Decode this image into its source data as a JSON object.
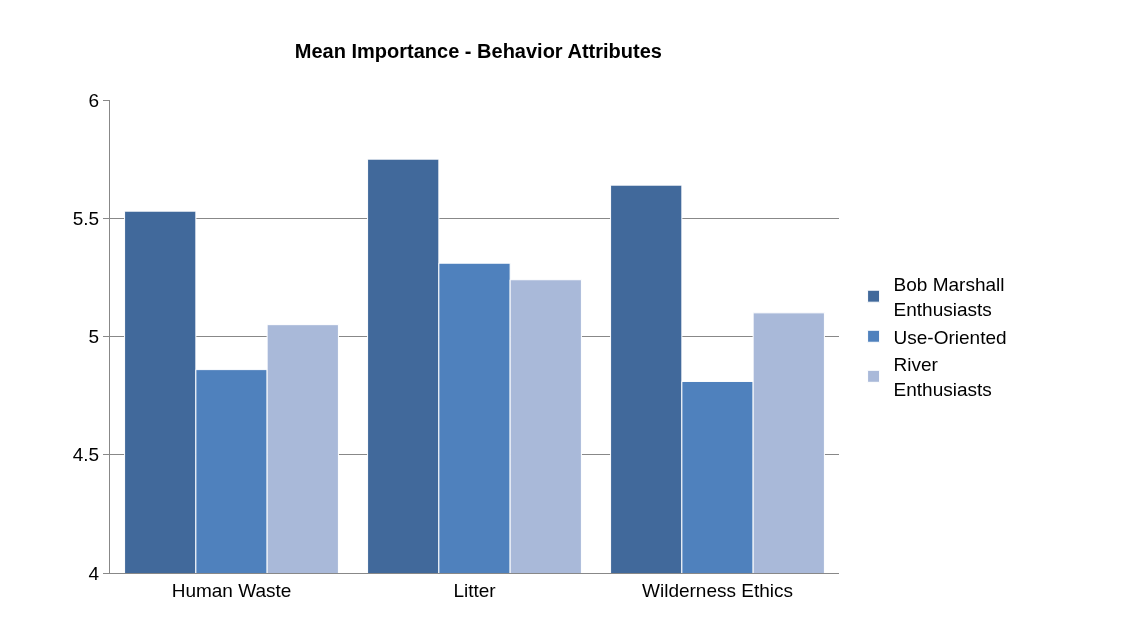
{
  "chart_data": {
    "type": "bar",
    "title": "Mean Importance - Behavior Attributes",
    "categories": [
      "Human Waste",
      "Litter",
      "Wilderness Ethics"
    ],
    "series": [
      {
        "name": "Bob Marshall Enthusiasts",
        "color": "#41699b",
        "values": [
          5.53,
          5.75,
          5.64
        ]
      },
      {
        "name": "Use-Oriented",
        "color": "#4f81bd",
        "values": [
          4.86,
          5.31,
          4.81
        ]
      },
      {
        "name": "River Enthusiasts",
        "color": "#a9b9d9",
        "values": [
          5.05,
          5.24,
          5.1
        ]
      }
    ],
    "ylim": [
      4,
      6
    ],
    "yticks": [
      4,
      4.5,
      5,
      5.5,
      6
    ],
    "grid": "y",
    "legend": "right"
  }
}
